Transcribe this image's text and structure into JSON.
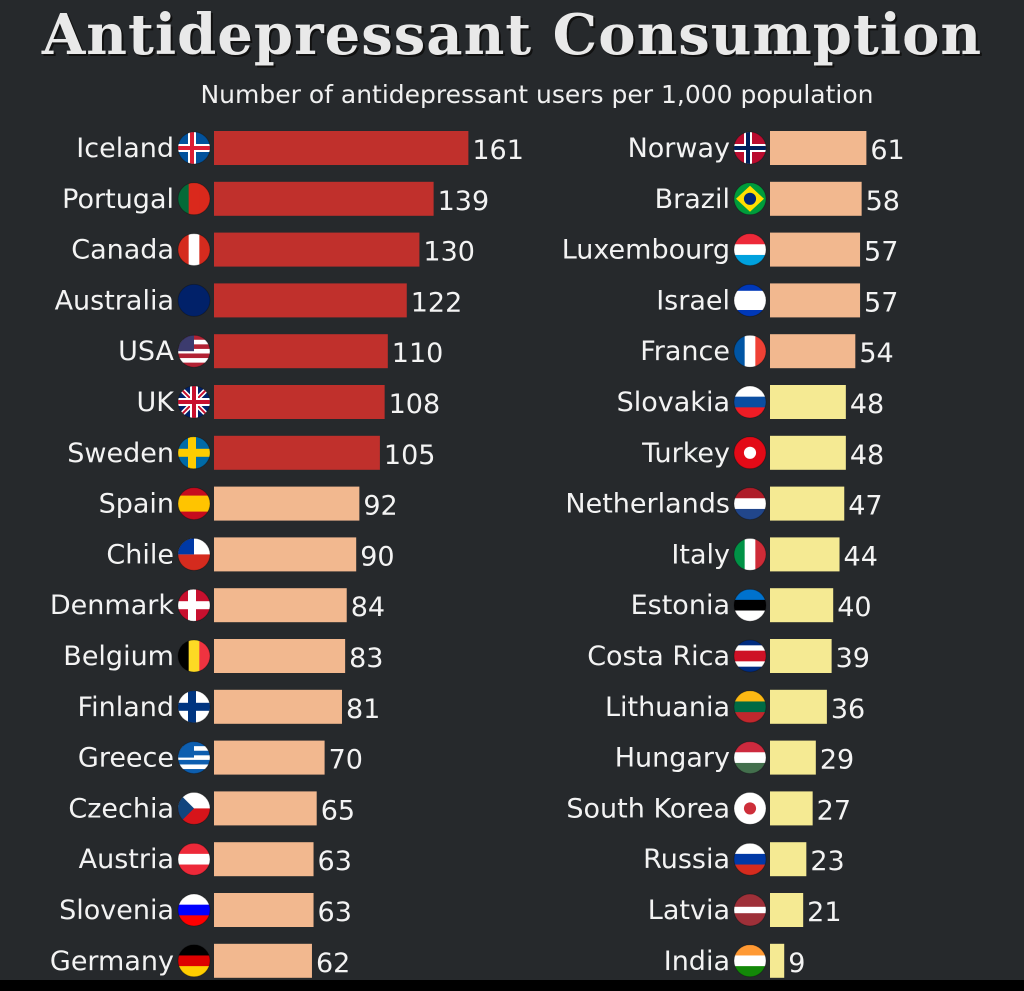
{
  "header": {
    "title": "Antidepressant Consumption",
    "subtitle": "Number of antidepressant users per 1,000 population"
  },
  "colors": {
    "background": "#26292c",
    "high": "#c0302c",
    "medium": "#f2b88f",
    "low": "#f5ea93"
  },
  "chart_data": {
    "type": "bar",
    "orientation": "horizontal",
    "title": "Antidepressant Consumption",
    "subtitle": "Number of antidepressant users per 1,000 population",
    "columns": [
      {
        "categories": [
          "Iceland",
          "Portugal",
          "Canada",
          "Australia",
          "USA",
          "UK",
          "Sweden",
          "Spain",
          "Chile",
          "Denmark",
          "Belgium",
          "Finland",
          "Greece",
          "Czechia",
          "Austria",
          "Slovenia",
          "Germany"
        ],
        "values": [
          161,
          139,
          130,
          122,
          110,
          108,
          105,
          92,
          90,
          84,
          83,
          81,
          70,
          65,
          63,
          63,
          62
        ],
        "flags": [
          "iceland-flag-icon",
          "portugal-flag-icon",
          "canada-flag-icon",
          "australia-flag-icon",
          "usa-flag-icon",
          "uk-flag-icon",
          "sweden-flag-icon",
          "spain-flag-icon",
          "chile-flag-icon",
          "denmark-flag-icon",
          "belgium-flag-icon",
          "finland-flag-icon",
          "greece-flag-icon",
          "czechia-flag-icon",
          "austria-flag-icon",
          "slovenia-flag-icon",
          "germany-flag-icon"
        ]
      },
      {
        "categories": [
          "Norway",
          "Brazil",
          "Luxembourg",
          "Israel",
          "France",
          "Slovakia",
          "Turkey",
          "Netherlands",
          "Italy",
          "Estonia",
          "Costa Rica",
          "Lithuania",
          "Hungary",
          "South Korea",
          "Russia",
          "Latvia",
          "India"
        ],
        "values": [
          61,
          58,
          57,
          57,
          54,
          48,
          48,
          47,
          44,
          40,
          39,
          36,
          29,
          27,
          23,
          21,
          9
        ],
        "flags": [
          "norway-flag-icon",
          "brazil-flag-icon",
          "luxembourg-flag-icon",
          "israel-flag-icon",
          "france-flag-icon",
          "slovakia-flag-icon",
          "turkey-flag-icon",
          "netherlands-flag-icon",
          "italy-flag-icon",
          "estonia-flag-icon",
          "costa-rica-flag-icon",
          "lithuania-flag-icon",
          "hungary-flag-icon",
          "south-korea-flag-icon",
          "russia-flag-icon",
          "latvia-flag-icon",
          "india-flag-icon"
        ]
      }
    ],
    "color_bands": [
      {
        "min": 100,
        "color": "#c0302c"
      },
      {
        "min": 50,
        "color": "#f2b88f"
      },
      {
        "min": 0,
        "color": "#f5ea93"
      }
    ],
    "grid": false,
    "legend": "none"
  }
}
